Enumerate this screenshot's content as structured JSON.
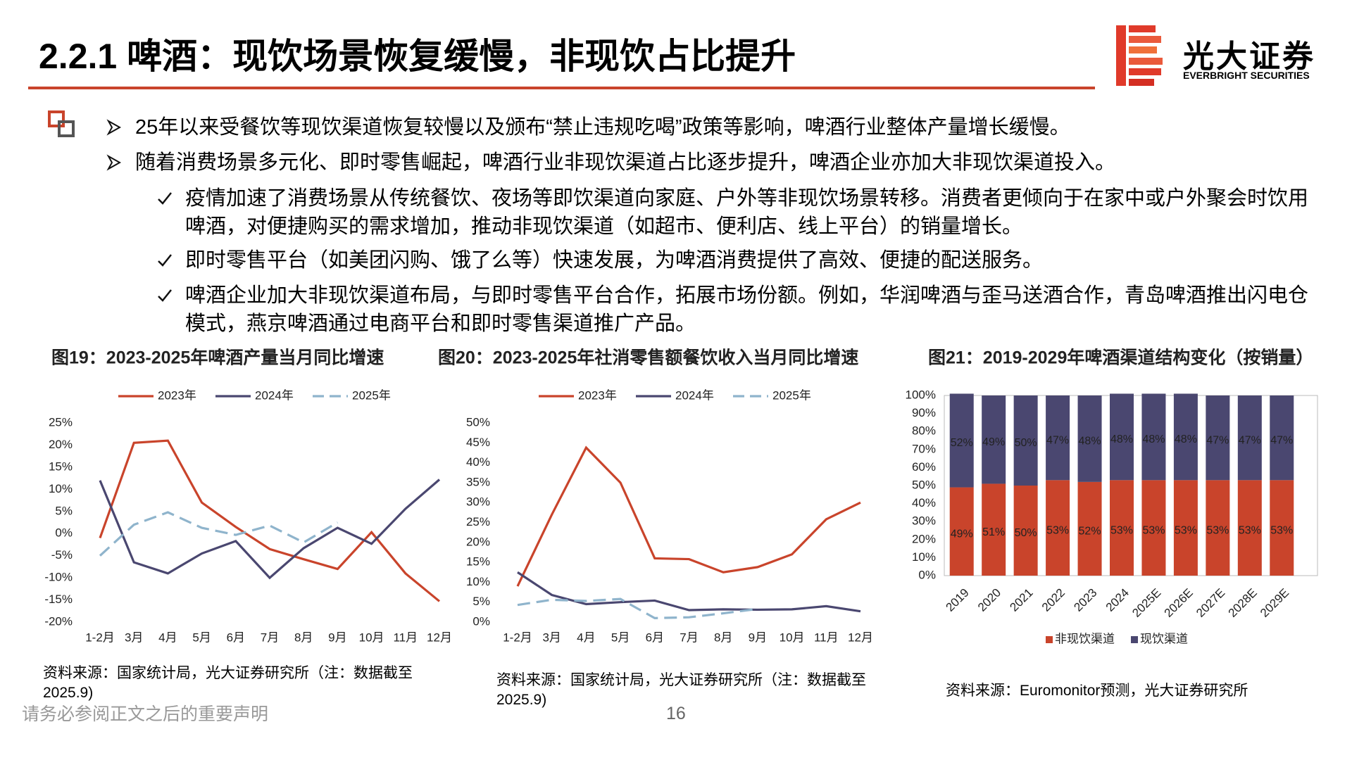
{
  "header": {
    "title": "2.2.1 啤酒：现饮场景恢复缓慢，非现饮占比提升"
  },
  "logo": {
    "name": "光大证券",
    "name_en": "EVERBRIGHT SECURITIES"
  },
  "points": [
    "25年以来受餐饮等现饮渠道恢复较慢以及颁布“禁止违规吃喝”政策等影响，啤酒行业整体产量增长缓慢。",
    "随着消费场景多元化、即时零售崛起，啤酒行业非现饮渠道占比逐步提升，啤酒企业亦加大非现饮渠道投入。"
  ],
  "sub_points": [
    "疫情加速了消费场景从传统餐饮、夜场等即饮渠道向家庭、户外等非现饮场景转移。消费者更倾向于在家中或户外聚会时饮用啤酒，对便捷购买的需求增加，推动非现饮渠道（如超市、便利店、线上平台）的销量增长。",
    "即时零售平台（如美团闪购、饿了么等）快速发展，为啤酒消费提供了高效、便捷的配送服务。",
    "啤酒企业加大非现饮渠道布局，与即时零售平台合作，拓展市场份额。例如，华润啤酒与歪马送酒合作，青岛啤酒推出闪电仓模式，燕京啤酒通过电商平台和即时零售渠道推广产品。"
  ],
  "chart_data": [
    {
      "type": "line",
      "title": "图19：2023-2025年啤酒产量当月同比增速",
      "categories": [
        "1-2月",
        "3月",
        "4月",
        "5月",
        "6月",
        "7月",
        "8月",
        "9月",
        "10月",
        "11月",
        "12月"
      ],
      "series": [
        {
          "name": "2023年",
          "color": "#c9442b",
          "dash": false,
          "values": [
            -1,
            20.5,
            21,
            7,
            1.5,
            -3.5,
            -5.8,
            -8,
            0.3,
            -9,
            -15.3
          ]
        },
        {
          "name": "2024年",
          "color": "#4a4770",
          "dash": false,
          "values": [
            12,
            -6.5,
            -9,
            -4.5,
            -1.7,
            -10,
            -3.3,
            1.3,
            -2.3,
            5.6,
            12.2
          ]
        },
        {
          "name": "2025年",
          "color": "#8fb4cc",
          "dash": true,
          "values": [
            -5,
            2,
            4.8,
            1.3,
            -0.3,
            1.8,
            -2,
            2.5,
            null,
            null,
            null
          ]
        }
      ],
      "ylim": [
        -20,
        25
      ],
      "yticks": [
        {
          "value": -20,
          "label": "-20%"
        },
        {
          "value": -15,
          "label": "-15%"
        },
        {
          "value": -10,
          "label": "-10%"
        },
        {
          "value": -5,
          "label": "-5%"
        },
        {
          "value": 0,
          "label": "0%"
        },
        {
          "value": 5,
          "label": "5%"
        },
        {
          "value": 10,
          "label": "10%"
        },
        {
          "value": 15,
          "label": "15%"
        },
        {
          "value": 20,
          "label": "20%"
        },
        {
          "value": 25,
          "label": "25%"
        }
      ],
      "grid": false,
      "legend": "top",
      "source": "资料来源：国家统计局，光大证券研究所（注：数据截至2025.9)"
    },
    {
      "type": "line",
      "title": "图20：2023-2025年社消零售额餐饮收入当月同比增速",
      "categories": [
        "1-2月",
        "3月",
        "4月",
        "5月",
        "6月",
        "7月",
        "8月",
        "9月",
        "10月",
        "11月",
        "12月"
      ],
      "series": [
        {
          "name": "2023年",
          "color": "#c9442b",
          "dash": false,
          "values": [
            9,
            27,
            43.8,
            35,
            16,
            15.8,
            12.5,
            13.8,
            17,
            25.8,
            30
          ]
        },
        {
          "name": "2024年",
          "color": "#4a4770",
          "dash": false,
          "values": [
            12.5,
            6.8,
            4.5,
            5,
            5.4,
            3,
            3.2,
            3.1,
            3.2,
            4,
            2.7
          ]
        },
        {
          "name": "2025年",
          "color": "#8fb4cc",
          "dash": true,
          "values": [
            4.3,
            5.6,
            5.3,
            5.8,
            1,
            1.2,
            2.2,
            3.3,
            null,
            null,
            null
          ]
        }
      ],
      "ylim": [
        0,
        50
      ],
      "yticks": [
        {
          "value": 0,
          "label": "0%"
        },
        {
          "value": 5,
          "label": "5%"
        },
        {
          "value": 10,
          "label": "10%"
        },
        {
          "value": 15,
          "label": "15%"
        },
        {
          "value": 20,
          "label": "20%"
        },
        {
          "value": 25,
          "label": "25%"
        },
        {
          "value": 30,
          "label": "30%"
        },
        {
          "value": 35,
          "label": "35%"
        },
        {
          "value": 40,
          "label": "40%"
        },
        {
          "value": 45,
          "label": "45%"
        },
        {
          "value": 50,
          "label": "50%"
        }
      ],
      "grid": false,
      "legend": "top",
      "source": "资料来源：国家统计局，光大证券研究所（注：数据截至2025.9)"
    },
    {
      "type": "stacked_bar",
      "title": "图21：2019-2029年啤酒渠道结构变化（按销量）",
      "categories": [
        "2019",
        "2020",
        "2021",
        "2022",
        "2023",
        "2024",
        "2025E",
        "2026E",
        "2027E",
        "2028E",
        "2029E"
      ],
      "series": [
        {
          "name": "非现饮渠道",
          "color": "#c9442b",
          "values": [
            49,
            51,
            50,
            53,
            52,
            53,
            53,
            53,
            53,
            53,
            53
          ],
          "value_labels": [
            "49%",
            "51%",
            "50%",
            "53%",
            "52%",
            "53%",
            "53%",
            "53%",
            "53%",
            "53%",
            "53%"
          ]
        },
        {
          "name": "现饮渠道",
          "color": "#4a4770",
          "values": [
            52,
            49,
            50,
            47,
            48,
            48,
            48,
            48,
            47,
            47,
            47
          ],
          "value_labels": [
            "52%",
            "49%",
            "50%",
            "47%",
            "48%",
            "48%",
            "48%",
            "48%",
            "47%",
            "47%",
            "47%"
          ]
        }
      ],
      "ylim": [
        0,
        100
      ],
      "yticks": [
        {
          "value": 0,
          "label": "0%"
        },
        {
          "value": 10,
          "label": "10%"
        },
        {
          "value": 20,
          "label": "20%"
        },
        {
          "value": 30,
          "label": "30%"
        },
        {
          "value": 40,
          "label": "40%"
        },
        {
          "value": 50,
          "label": "50%"
        },
        {
          "value": 60,
          "label": "60%"
        },
        {
          "value": 70,
          "label": "70%"
        },
        {
          "value": 80,
          "label": "80%"
        },
        {
          "value": 90,
          "label": "90%"
        },
        {
          "value": 100,
          "label": "100%"
        }
      ],
      "grid": false,
      "legend": "bottom",
      "source": "资料来源：Euromonitor预测，光大证券研究所"
    }
  ],
  "footer": {
    "disclaimer": "请务必参阅正文之后的重要声明",
    "page": 16
  }
}
